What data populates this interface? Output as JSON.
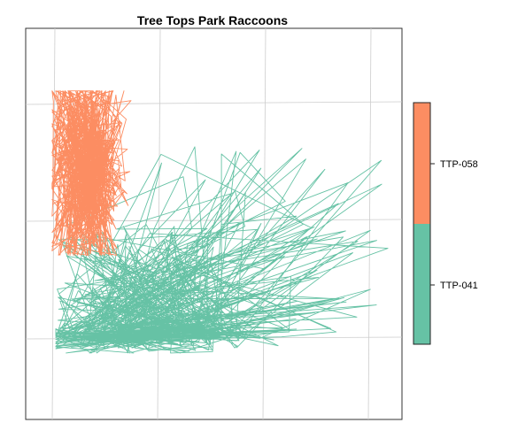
{
  "chart_data": {
    "type": "line",
    "title": "Tree Tops Park Raccoons",
    "xlabel": "",
    "ylabel": "",
    "grid": true,
    "legend_placement": "right",
    "series": [
      {
        "name": "TTP-041",
        "color": "#66C2A5",
        "center": [
          0.32,
          0.78
        ],
        "spread": [
          0.16,
          0.17
        ],
        "extent": {
          "x": [
            0.08,
            0.98
          ],
          "y": [
            0.3,
            0.83
          ]
        },
        "points_count": 520
      },
      {
        "name": "TTP-058",
        "color": "#FC8D62",
        "center": [
          0.16,
          0.35
        ],
        "spread": [
          0.05,
          0.13
        ],
        "extent": {
          "x": [
            0.07,
            0.28
          ],
          "y": [
            0.16,
            0.58
          ]
        },
        "points_count": 560
      }
    ],
    "legend": {
      "entries": [
        "TTP-058",
        "TTP-041"
      ],
      "colors": [
        "#FC8D62",
        "#66C2A5"
      ]
    }
  }
}
